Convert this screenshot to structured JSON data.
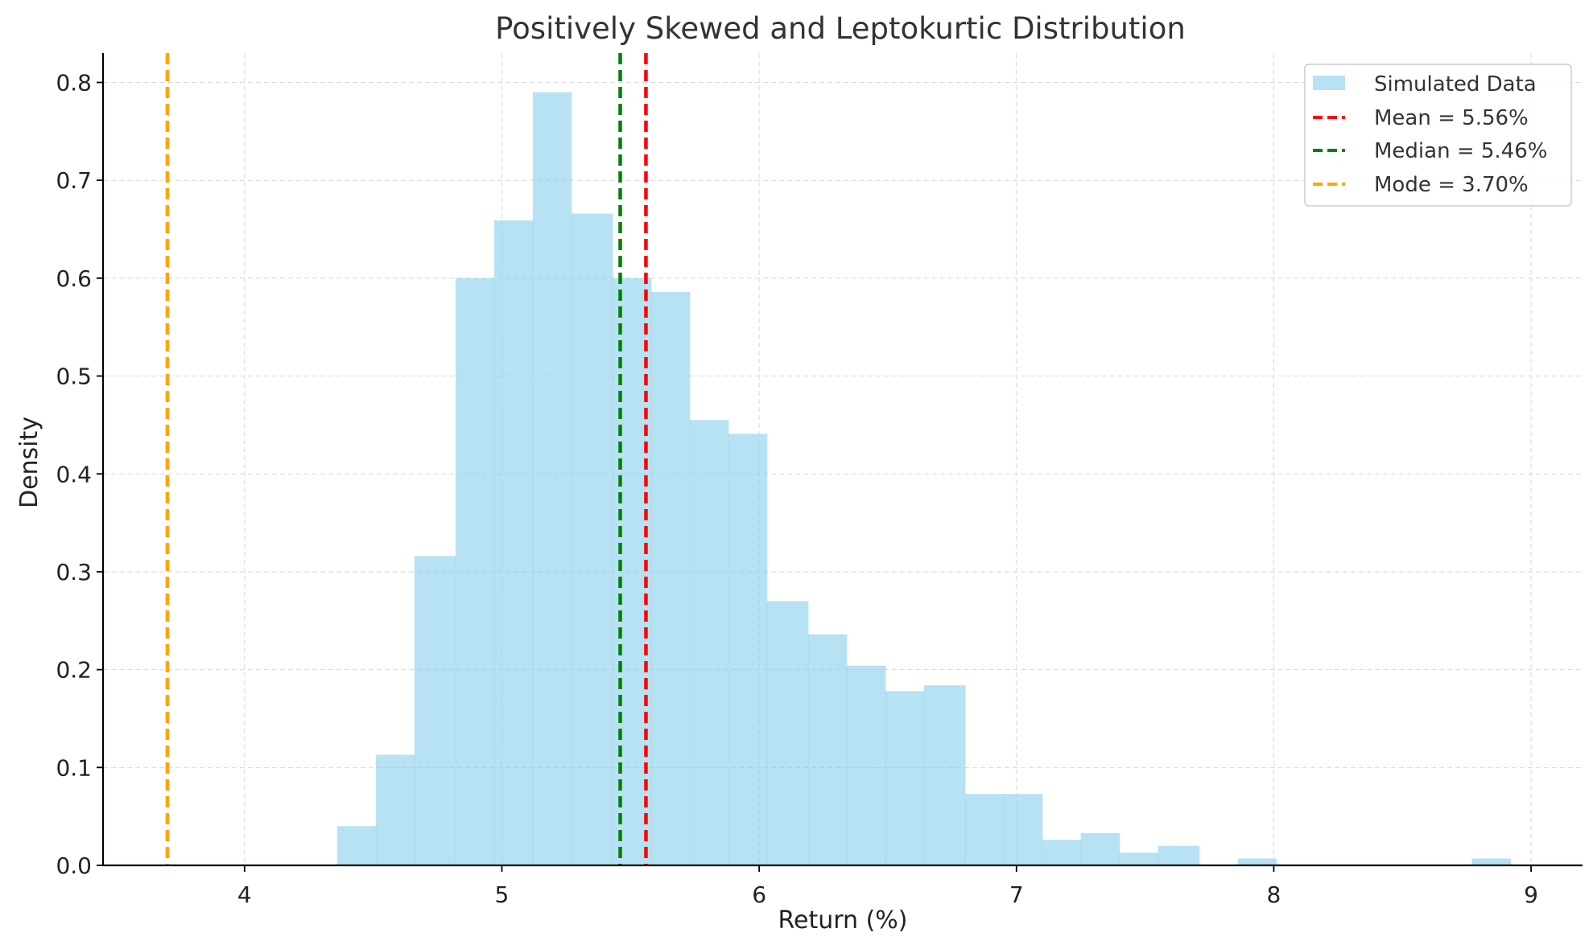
{
  "chart_data": {
    "type": "bar",
    "title": "Positively Skewed and Leptokurtic Distribution",
    "xlabel": "Return (%)",
    "ylabel": "Density",
    "xlim": [
      3.45,
      9.2
    ],
    "ylim": [
      0,
      0.83
    ],
    "xticks": [
      4,
      5,
      6,
      7,
      8,
      9
    ],
    "yticks": [
      0.0,
      0.1,
      0.2,
      0.3,
      0.4,
      0.5,
      0.6,
      0.7,
      0.8
    ],
    "xtick_labels": [
      "4",
      "5",
      "6",
      "7",
      "8",
      "9"
    ],
    "ytick_labels": [
      "0.0",
      "0.1",
      "0.2",
      "0.3",
      "0.4",
      "0.5",
      "0.6",
      "0.7",
      "0.8"
    ],
    "grid": true,
    "legend_position": "top-right",
    "histogram": {
      "name": "Simulated Data",
      "color": "#87ceeb",
      "bins": [
        {
          "x0": 4.36,
          "x1": 4.51,
          "value": 0.04
        },
        {
          "x0": 4.51,
          "x1": 4.66,
          "value": 0.113
        },
        {
          "x0": 4.66,
          "x1": 4.82,
          "value": 0.316
        },
        {
          "x0": 4.82,
          "x1": 4.97,
          "value": 0.6
        },
        {
          "x0": 4.97,
          "x1": 5.12,
          "value": 0.659
        },
        {
          "x0": 5.12,
          "x1": 5.27,
          "value": 0.79
        },
        {
          "x0": 5.27,
          "x1": 5.43,
          "value": 0.666
        },
        {
          "x0": 5.43,
          "x1": 5.58,
          "value": 0.6
        },
        {
          "x0": 5.58,
          "x1": 5.73,
          "value": 0.586
        },
        {
          "x0": 5.73,
          "x1": 5.88,
          "value": 0.455
        },
        {
          "x0": 5.88,
          "x1": 6.03,
          "value": 0.441
        },
        {
          "x0": 6.03,
          "x1": 6.19,
          "value": 0.27
        },
        {
          "x0": 6.19,
          "x1": 6.34,
          "value": 0.236
        },
        {
          "x0": 6.34,
          "x1": 6.49,
          "value": 0.204
        },
        {
          "x0": 6.49,
          "x1": 6.64,
          "value": 0.178
        },
        {
          "x0": 6.64,
          "x1": 6.8,
          "value": 0.184
        },
        {
          "x0": 6.8,
          "x1": 6.95,
          "value": 0.073
        },
        {
          "x0": 6.95,
          "x1": 7.1,
          "value": 0.073
        },
        {
          "x0": 7.1,
          "x1": 7.25,
          "value": 0.026
        },
        {
          "x0": 7.25,
          "x1": 7.4,
          "value": 0.033
        },
        {
          "x0": 7.4,
          "x1": 7.55,
          "value": 0.013
        },
        {
          "x0": 7.55,
          "x1": 7.71,
          "value": 0.02
        },
        {
          "x0": 7.71,
          "x1": 7.86,
          "value": 0.0
        },
        {
          "x0": 7.86,
          "x1": 8.01,
          "value": 0.007
        },
        {
          "x0": 8.01,
          "x1": 8.17,
          "value": 0.0
        },
        {
          "x0": 8.17,
          "x1": 8.32,
          "value": 0.0
        },
        {
          "x0": 8.32,
          "x1": 8.47,
          "value": 0.0
        },
        {
          "x0": 8.47,
          "x1": 8.62,
          "value": 0.0
        },
        {
          "x0": 8.62,
          "x1": 8.77,
          "value": 0.0
        },
        {
          "x0": 8.77,
          "x1": 8.92,
          "value": 0.007
        }
      ]
    },
    "vlines": [
      {
        "name": "Mean = 5.56%",
        "x": 5.56,
        "color": "#ff0000"
      },
      {
        "name": "Median = 5.46%",
        "x": 5.46,
        "color": "#008000"
      },
      {
        "name": "Mode = 3.70%",
        "x": 3.7,
        "color": "#ffa500"
      }
    ]
  }
}
